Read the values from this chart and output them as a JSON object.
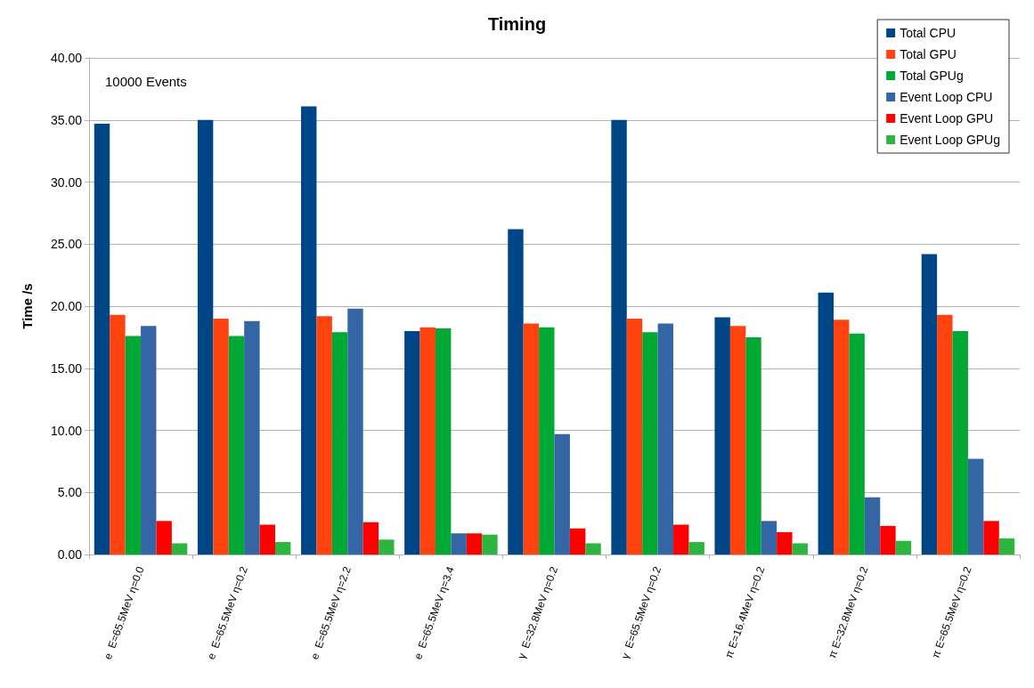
{
  "chart_data": {
    "type": "bar",
    "title": "Timing",
    "ylabel": "Time /s",
    "annotations": [
      "10000 Events"
    ],
    "categories": [
      "e  E=65.5MeV η=0.0",
      "e  E=65.5MeV η=0.2",
      "e  E=65.5MeV η=2.2",
      "e  E=65.5MeV η=3.4",
      "γ  E=32.8MeV η=0.2",
      "γ  E=65.5MeV η=0.2",
      "π E=16.4MeV η=0.2",
      "π E=32.8MeV η=0.2",
      "π E=65.5MeV η=0.2"
    ],
    "series": [
      {
        "name": "Total CPU",
        "color": "#004586",
        "values": [
          34.7,
          35.0,
          36.1,
          18.0,
          26.2,
          35.0,
          19.1,
          21.1,
          24.2
        ]
      },
      {
        "name": "Total GPU",
        "color": "#ff420e",
        "values": [
          19.3,
          19.0,
          19.2,
          18.3,
          18.6,
          19.0,
          18.4,
          18.9,
          19.3
        ]
      },
      {
        "name": "Total GPUg",
        "color": "#00a933",
        "values": [
          17.6,
          17.6,
          17.9,
          18.2,
          18.3,
          17.9,
          17.5,
          17.8,
          18.0
        ]
      },
      {
        "name": "Event Loop CPU",
        "color": "#3465a4",
        "values": [
          18.4,
          18.8,
          19.8,
          1.7,
          9.7,
          18.6,
          2.7,
          4.6,
          7.7
        ]
      },
      {
        "name": "Event Loop GPU",
        "color": "#ff0000",
        "values": [
          2.7,
          2.4,
          2.6,
          1.7,
          2.1,
          2.4,
          1.8,
          2.3,
          2.7
        ]
      },
      {
        "name": "Event Loop GPUg",
        "color": "#2cb53f",
        "values": [
          0.9,
          1.0,
          1.2,
          1.6,
          0.9,
          1.0,
          0.9,
          1.1,
          1.3
        ]
      }
    ],
    "ylim": [
      0,
      40
    ],
    "yticks": [
      {
        "value": 0,
        "label": "0.00"
      },
      {
        "value": 5,
        "label": "5.00"
      },
      {
        "value": 10,
        "label": "10.00"
      },
      {
        "value": 15,
        "label": "15.00"
      },
      {
        "value": 20,
        "label": "20.00"
      },
      {
        "value": 25,
        "label": "25.00"
      },
      {
        "value": 30,
        "label": "30.00"
      },
      {
        "value": 35,
        "label": "35.00"
      },
      {
        "value": 40,
        "label": "40.00"
      }
    ],
    "grid": "y",
    "legend": "top right"
  }
}
